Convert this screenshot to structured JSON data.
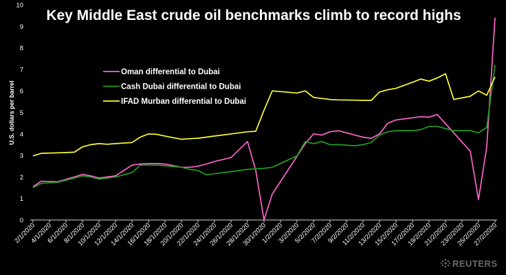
{
  "chart_data": {
    "type": "line",
    "title": "Key Middle East crude oil benchmarks climb to record highs",
    "ylabel": "U.S. dollars per barrel",
    "xlabel": "",
    "ylim": [
      0,
      10
    ],
    "yticks": [
      0,
      1,
      2,
      3,
      4,
      5,
      6,
      7,
      8,
      9,
      10
    ],
    "grid": false,
    "legend_position": "upper-left",
    "xtick_labels": [
      "2/1/2020",
      "4/1/2020",
      "6/1/2020",
      "8/1/2020",
      "10/1/2020",
      "12/1/2020",
      "14/1/2020",
      "16/1/2020",
      "18/1/2020",
      "20/1/2020",
      "22/1/2020",
      "24/1/2020",
      "26/1/2020",
      "28/1/2020",
      "30/1/2020",
      "1/2/2020",
      "3/2/2020",
      "5/2/2020",
      "7/2/2020",
      "9/2/2020",
      "11/2/2020",
      "13/2/2020",
      "15/2/2020",
      "17/2/2020",
      "19/2/2020",
      "21/2/2020",
      "23/2/2020",
      "25/2/2020",
      "27/2/2020"
    ],
    "x_first": 2,
    "x_last": 58,
    "x_tick_step": 2,
    "series": [
      {
        "name": "Oman differential to Dubai",
        "color": "#ff66cc",
        "x": [
          2,
          3,
          5,
          7,
          8,
          9,
          10,
          11,
          12,
          14,
          15,
          16,
          17,
          18,
          20,
          21,
          22,
          23,
          24,
          26,
          28,
          29,
          30,
          31,
          35,
          36,
          37,
          38,
          39,
          41,
          42,
          43,
          44,
          45,
          46,
          48,
          49,
          50,
          51,
          55,
          56,
          57,
          58
        ],
        "y": [
          1.55,
          1.8,
          1.78,
          2.0,
          2.12,
          2.05,
          1.95,
          2.0,
          2.05,
          2.55,
          2.6,
          2.62,
          2.62,
          2.6,
          2.45,
          2.45,
          2.5,
          2.6,
          2.72,
          2.9,
          3.65,
          2.3,
          0.0,
          1.2,
          3.55,
          4.0,
          3.95,
          4.1,
          4.15,
          3.95,
          3.85,
          3.8,
          4.0,
          4.5,
          4.65,
          4.75,
          4.8,
          4.78,
          4.9,
          3.2,
          0.95,
          3.4,
          9.4
        ]
      },
      {
        "name": "Cash Dubai differential to Dubai",
        "color": "#1f9e1f",
        "x": [
          2,
          3,
          5,
          7,
          8,
          9,
          10,
          11,
          12,
          14,
          15,
          16,
          17,
          18,
          20,
          21,
          22,
          23,
          24,
          26,
          28,
          29,
          30,
          31,
          34,
          35,
          36,
          37,
          38,
          39,
          41,
          42,
          43,
          44,
          45,
          46,
          48,
          49,
          50,
          51,
          52,
          53,
          55,
          56,
          57,
          58
        ],
        "y": [
          1.5,
          1.7,
          1.75,
          1.95,
          2.05,
          2.0,
          1.9,
          1.95,
          2.0,
          2.2,
          2.55,
          2.55,
          2.55,
          2.52,
          2.45,
          2.35,
          2.3,
          2.1,
          2.15,
          2.25,
          2.35,
          2.38,
          2.4,
          2.45,
          2.98,
          3.65,
          3.55,
          3.65,
          3.5,
          3.5,
          3.45,
          3.5,
          3.6,
          3.95,
          4.1,
          4.15,
          4.15,
          4.2,
          4.35,
          4.35,
          4.25,
          4.15,
          4.15,
          4.05,
          4.3,
          7.2
        ]
      },
      {
        "name": "IFAD Murban differential to Dubai",
        "color": "#ffff33",
        "x": [
          2,
          3,
          5,
          7,
          8,
          9,
          10,
          11,
          12,
          14,
          15,
          16,
          17,
          18,
          20,
          21,
          22,
          23,
          24,
          26,
          28,
          29,
          30,
          31,
          34,
          35,
          36,
          37,
          38,
          39,
          41,
          42,
          43,
          44,
          45,
          46,
          48,
          49,
          50,
          51,
          52,
          53,
          55,
          56,
          57,
          58
        ],
        "y": [
          2.98,
          3.1,
          3.12,
          3.15,
          3.4,
          3.5,
          3.55,
          3.52,
          3.55,
          3.6,
          3.85,
          4.0,
          3.98,
          3.9,
          3.75,
          3.78,
          3.8,
          3.85,
          3.9,
          4.0,
          4.1,
          4.12,
          5.1,
          6.0,
          5.9,
          6.0,
          5.7,
          5.65,
          5.6,
          5.58,
          5.57,
          5.56,
          5.56,
          5.95,
          6.05,
          6.12,
          6.4,
          6.55,
          6.45,
          6.6,
          6.8,
          5.6,
          5.75,
          6.0,
          5.8,
          6.65
        ]
      }
    ]
  },
  "credit": {
    "label": "REUTERS",
    "icon": "reuters-logo-icon"
  }
}
